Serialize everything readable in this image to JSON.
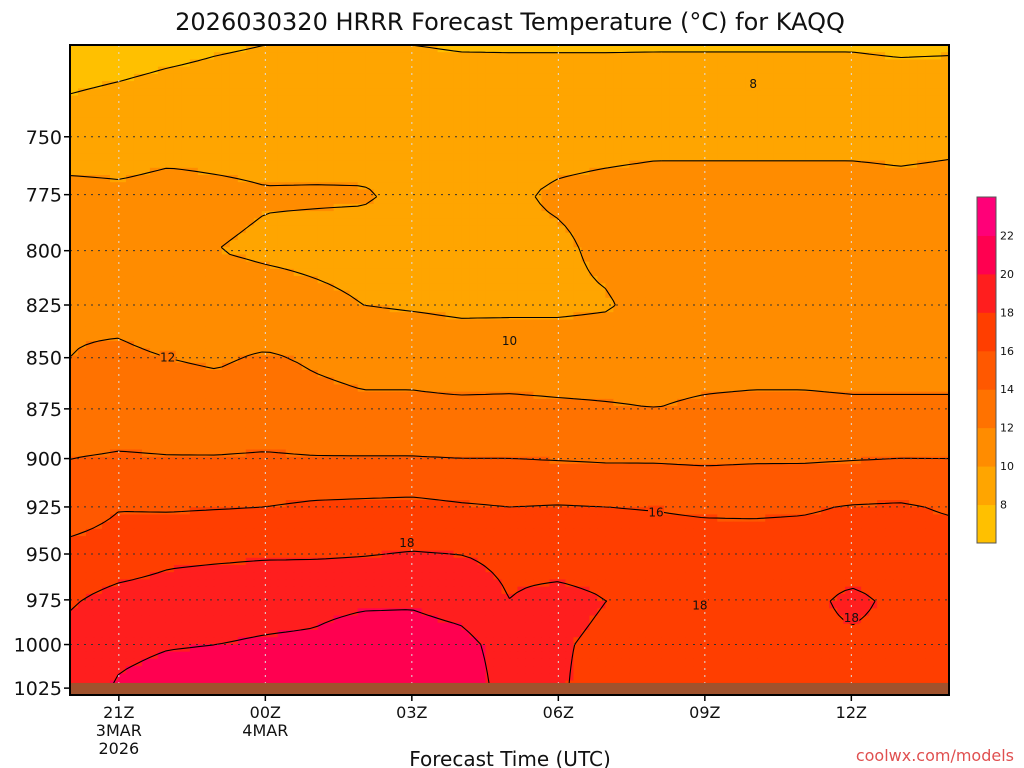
{
  "chart_data": {
    "type": "heatmap",
    "title": "2026030320 HRRR Forecast Temperature (°C) for KAQQ",
    "xlabel": "Forecast Time (UTC)",
    "ylabel": "",
    "credit": "coolwx.com/models",
    "x_ticks": [
      {
        "t": 1,
        "line1": "21Z",
        "line2": "3MAR",
        "line3": "2026"
      },
      {
        "t": 4,
        "line1": "00Z",
        "line2": "4MAR",
        "line3": ""
      },
      {
        "t": 7,
        "line1": "03Z",
        "line2": "",
        "line3": ""
      },
      {
        "t": 10,
        "line1": "06Z",
        "line2": "",
        "line3": ""
      },
      {
        "t": 13,
        "line1": "09Z",
        "line2": "",
        "line3": ""
      },
      {
        "t": 16,
        "line1": "12Z",
        "line2": "",
        "line3": ""
      }
    ],
    "xlim": [
      0,
      18
    ],
    "y_ticks": [
      750,
      775,
      800,
      825,
      850,
      875,
      900,
      925,
      950,
      975,
      1000,
      1025
    ],
    "ylim": [
      1029,
      712
    ],
    "y_scale": "log-pressure",
    "grid": true,
    "surface_pressure_hPa": 1022,
    "colorbar": {
      "levels": [
        6,
        8,
        10,
        12,
        14,
        16,
        18,
        20,
        22,
        24
      ],
      "labels": [
        "8",
        "10",
        "12",
        "14",
        "16",
        "18",
        "20",
        "22"
      ],
      "colors": [
        "#FFC000",
        "#FFA500",
        "#FF8C00",
        "#FF7200",
        "#FF5800",
        "#FF3E00",
        "#FF1E1E",
        "#FF0050",
        "#FF0078"
      ]
    },
    "levels_hPa": [
      712,
      740,
      775,
      800,
      825,
      850,
      875,
      900,
      925,
      950,
      975,
      1000,
      1029
    ],
    "times": [
      0,
      1,
      2,
      3,
      4,
      5,
      6,
      7,
      8,
      9,
      10,
      11,
      12,
      13,
      14,
      15,
      16,
      17,
      18
    ],
    "temperature": [
      [
        7.0,
        7.2,
        7.5,
        7.8,
        8.0,
        8.1,
        8.1,
        8.0,
        7.9,
        7.9,
        7.9,
        7.9,
        7.9,
        7.9,
        7.9,
        7.9,
        7.9,
        7.8,
        7.8
      ],
      [
        8.4,
        8.7,
        9.0,
        9.1,
        9.2,
        9.3,
        9.2,
        9.0,
        8.9,
        8.8,
        8.8,
        8.8,
        8.9,
        8.9,
        8.9,
        8.9,
        8.9,
        8.9,
        9.1
      ],
      [
        10.5,
        10.3,
        10.5,
        10.3,
        10.1,
        10.1,
        10.1,
        9.8,
        9.6,
        9.7,
        10.3,
        10.6,
        10.8,
        10.8,
        10.8,
        10.8,
        10.8,
        10.6,
        10.7
      ],
      [
        11.5,
        11.0,
        10.5,
        10.0,
        9.8,
        9.7,
        9.6,
        9.5,
        9.6,
        9.6,
        9.6,
        10.5,
        11.0,
        11.1,
        11.1,
        11.1,
        11.1,
        11.1,
        11.2
      ],
      [
        11.8,
        11.5,
        11.0,
        10.8,
        10.6,
        10.3,
        10.0,
        9.8,
        9.6,
        9.6,
        9.6,
        9.8,
        11.0,
        11.2,
        11.2,
        11.2,
        11.2,
        11.2,
        11.2
      ],
      [
        12.0,
        12.3,
        12.0,
        11.8,
        12.2,
        11.8,
        11.5,
        11.5,
        11.2,
        11.3,
        11.3,
        11.4,
        11.5,
        11.5,
        11.5,
        11.5,
        11.5,
        11.5,
        11.5
      ],
      [
        12.6,
        12.9,
        12.8,
        12.7,
        12.8,
        12.5,
        12.3,
        12.3,
        12.3,
        12.3,
        12.2,
        12.1,
        12.0,
        12.2,
        12.3,
        12.3,
        12.2,
        12.2,
        12.2
      ],
      [
        14.0,
        14.2,
        14.1,
        14.1,
        14.2,
        14.1,
        14.1,
        14.1,
        14.0,
        14.0,
        13.9,
        13.8,
        13.8,
        13.7,
        13.8,
        13.8,
        13.9,
        14.0,
        14.0
      ],
      [
        14.8,
        15.9,
        15.8,
        15.9,
        16.0,
        16.3,
        16.4,
        16.5,
        16.2,
        16.0,
        16.1,
        16.0,
        15.9,
        15.7,
        15.7,
        15.8,
        16.1,
        16.2,
        15.8
      ],
      [
        16.7,
        17.0,
        17.6,
        17.7,
        17.8,
        17.8,
        17.9,
        18.1,
        18.0,
        17.6,
        17.1,
        17.0,
        17.0,
        17.0,
        16.9,
        16.9,
        16.9,
        16.9,
        16.9
      ],
      [
        17.8,
        18.6,
        18.8,
        19.1,
        19.3,
        19.5,
        19.7,
        19.7,
        19.1,
        18.0,
        18.6,
        18.0,
        17.7,
        17.8,
        17.3,
        17.5,
        18.4,
        17.6,
        17.5
      ],
      [
        18.6,
        19.6,
        19.9,
        20.0,
        20.2,
        20.3,
        20.9,
        21.1,
        20.7,
        19.0,
        18.2,
        17.6,
        17.6,
        17.6,
        17.6,
        17.6,
        17.7,
        17.6,
        17.6
      ],
      [
        19.0,
        20.3,
        20.8,
        20.9,
        20.9,
        21.0,
        21.5,
        22.3,
        21.6,
        19.0,
        18.2,
        17.2,
        17.4,
        17.5,
        17.5,
        17.5,
        17.5,
        17.5,
        17.5
      ]
    ],
    "contour_labels": [
      {
        "value": "8",
        "t": 13.99,
        "p": 728
      },
      {
        "value": "10",
        "t": 9.0,
        "p": 842
      },
      {
        "value": "12",
        "t": 2.0,
        "p": 850
      },
      {
        "value": "16",
        "t": 12.0,
        "p": 928
      },
      {
        "value": "18",
        "t": 6.9,
        "p": 944
      },
      {
        "value": "18",
        "t": 12.9,
        "p": 978
      },
      {
        "value": "18",
        "t": 16.0,
        "p": 985
      }
    ]
  }
}
